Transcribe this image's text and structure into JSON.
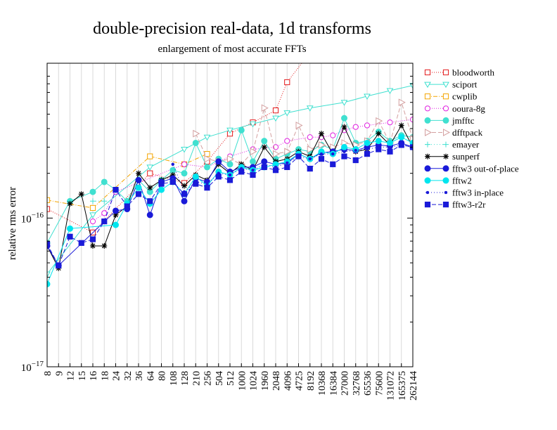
{
  "chart_data": {
    "type": "line",
    "title": "double-precision real-data, 1d transforms",
    "subtitle": "enlargement of most accurate FFTs",
    "ylabel": "relative rms error",
    "xlabel": "",
    "y_scale": "log",
    "ylim": [
      1e-17,
      1.1e-15
    ],
    "y_ticks": [
      {
        "value": 1e-17,
        "base": "10",
        "exp": "−17"
      },
      {
        "value": 1e-16,
        "base": "10",
        "exp": "−16"
      }
    ],
    "grid": "vertical lines at each size",
    "legend_position": "right, outside plot",
    "categories": [
      "8",
      "9",
      "12",
      "15",
      "16",
      "18",
      "24",
      "32",
      "36",
      "64",
      "80",
      "108",
      "128",
      "210",
      "256",
      "504",
      "512",
      "1000",
      "1024",
      "1960",
      "2048",
      "4096",
      "4725",
      "8192",
      "10368",
      "16384",
      "27000",
      "32768",
      "65536",
      "75600",
      "131072",
      "165375",
      "262144"
    ],
    "series": [
      {
        "name": "bloodworth",
        "color": "#e41a1c",
        "marker": "square-open",
        "dash": "1,2",
        "values": [
          1.15e-16,
          null,
          null,
          null,
          8e-17,
          null,
          null,
          null,
          null,
          2e-16,
          null,
          null,
          1.72e-16,
          null,
          2.4e-16,
          null,
          3.7e-16,
          null,
          4.4e-16,
          null,
          5.3e-16,
          8.2e-16,
          null,
          1.3e-15,
          null,
          null,
          null,
          null,
          null,
          null,
          null,
          null,
          null
        ]
      },
      {
        "name": "sciport",
        "color": "#40e0d0",
        "marker": "triangle-down-open",
        "dash": "",
        "values": [
          4.2e-17,
          null,
          null,
          null,
          1.05e-16,
          null,
          null,
          null,
          null,
          2.2e-16,
          null,
          null,
          2.9e-16,
          null,
          3.5e-16,
          null,
          3.9e-16,
          null,
          4.3e-16,
          null,
          4.7e-16,
          5.1e-16,
          null,
          5.5e-16,
          null,
          null,
          6e-16,
          null,
          6.6e-16,
          null,
          7.2e-16,
          null,
          7.8e-16
        ]
      },
      {
        "name": "cwplib",
        "color": "#f4a500",
        "marker": "square-open",
        "dash": "6,2,1,2",
        "values": [
          1.32e-16,
          null,
          null,
          null,
          1.17e-16,
          null,
          null,
          null,
          null,
          2.6e-16,
          null,
          null,
          2.3e-16,
          null,
          2.7e-16,
          null,
          null,
          null,
          null,
          null,
          null,
          null,
          null,
          null,
          null,
          null,
          null,
          null,
          null,
          null,
          null,
          null,
          null
        ]
      },
      {
        "name": "ooura-8g",
        "color": "#e020e0",
        "marker": "circle-open",
        "dash": "1,2",
        "values": [
          null,
          null,
          null,
          null,
          9.5e-17,
          1.08e-16,
          1.5e-16,
          null,
          null,
          null,
          null,
          null,
          2.3e-16,
          null,
          2.2e-16,
          null,
          2.6e-16,
          null,
          2.9e-16,
          null,
          3e-16,
          3.3e-16,
          null,
          3.5e-16,
          3.5e-16,
          3.6e-16,
          3.9e-16,
          4.1e-16,
          4.2e-16,
          null,
          4.4e-16,
          null,
          4.6e-16
        ]
      },
      {
        "name": "jmfftc",
        "color": "#40e0d0",
        "marker": "circle-filled",
        "dash": "",
        "values": [
          6.8e-17,
          null,
          1.3e-16,
          null,
          1.5e-16,
          1.75e-16,
          1.55e-16,
          1.3e-16,
          1.8e-16,
          1.5e-16,
          1.8e-16,
          2.1e-16,
          2e-16,
          3.2e-16,
          2.2e-16,
          2.5e-16,
          2.3e-16,
          3.9e-16,
          2.4e-16,
          3.3e-16,
          2.5e-16,
          2.7e-16,
          2.9e-16,
          2.8e-16,
          3.1e-16,
          2.9e-16,
          4.7e-16,
          3.2e-16,
          3.3e-16,
          3.8e-16,
          3.3e-16,
          3.6e-16,
          3.5e-16
        ]
      },
      {
        "name": "dfftpack",
        "color": "#d4a0a0",
        "marker": "triangle-right-open",
        "dash": "6,3",
        "values": [
          null,
          null,
          null,
          null,
          null,
          null,
          null,
          null,
          null,
          null,
          null,
          null,
          null,
          3.7e-16,
          2.5e-16,
          2.4e-16,
          2.5e-16,
          2.3e-16,
          2.8e-16,
          5.5e-16,
          2.7e-16,
          2.8e-16,
          4.2e-16,
          2.9e-16,
          3.1e-16,
          3e-16,
          3.2e-16,
          3.1e-16,
          3.3e-16,
          4.5e-16,
          3.2e-16,
          6e-16,
          3.4e-16
        ]
      },
      {
        "name": "emayer",
        "color": "#40e0d0",
        "marker": "plus",
        "dash": "1,3",
        "values": [
          null,
          null,
          null,
          null,
          1.3e-16,
          1.3e-16,
          null,
          null,
          null,
          null,
          null,
          null,
          null,
          null,
          null,
          null,
          null,
          null,
          null,
          null,
          null,
          null,
          null,
          null,
          null,
          null,
          null,
          null,
          null,
          null,
          null,
          null,
          null
        ]
      },
      {
        "name": "sunperf",
        "color": "#000000",
        "marker": "star",
        "dash": "",
        "values": [
          6.5e-17,
          4.6e-17,
          1.25e-16,
          1.45e-16,
          6.5e-17,
          6.5e-17,
          1.05e-16,
          1.2e-16,
          2e-16,
          1.6e-16,
          1.8e-16,
          1.95e-16,
          1.65e-16,
          1.95e-16,
          1.8e-16,
          2.3e-16,
          2e-16,
          2.3e-16,
          2.1e-16,
          3e-16,
          2.4e-16,
          2.5e-16,
          2.8e-16,
          2.6e-16,
          3.7e-16,
          2.7e-16,
          4.1e-16,
          2.8e-16,
          2.9e-16,
          3.7e-16,
          3.1e-16,
          4.2e-16,
          3e-16
        ]
      },
      {
        "name": "fftw3 out-of-place",
        "color": "#1a1ad8",
        "marker": "circle-filled",
        "dash": "",
        "values": [
          6.5e-17,
          4.8e-17,
          null,
          null,
          null,
          null,
          1.12e-16,
          1.15e-16,
          1.8e-16,
          1.05e-16,
          1.75e-16,
          1.85e-16,
          1.3e-16,
          1.85e-16,
          1.75e-16,
          2.4e-16,
          2.05e-16,
          2.2e-16,
          2.2e-16,
          2.4e-16,
          2.3e-16,
          2.35e-16,
          2.7e-16,
          2.5e-16,
          2.75e-16,
          2.8e-16,
          2.9e-16,
          2.85e-16,
          3e-16,
          3.1e-16,
          3.05e-16,
          3.2e-16,
          3e-16
        ]
      },
      {
        "name": "fftw2",
        "color": "#00e5ee",
        "marker": "circle-filled",
        "dash": "",
        "values": [
          3.6e-17,
          null,
          8.5e-17,
          null,
          null,
          null,
          9e-17,
          1.25e-16,
          1.6e-16,
          1.25e-16,
          1.55e-16,
          1.75e-16,
          1.45e-16,
          1.9e-16,
          1.65e-16,
          2.05e-16,
          1.95e-16,
          2.2e-16,
          2.1e-16,
          2.2e-16,
          2.3e-16,
          2.4e-16,
          2.7e-16,
          2.5e-16,
          2.8e-16,
          2.7e-16,
          3e-16,
          2.9e-16,
          3.2e-16,
          3.3e-16,
          3.2e-16,
          3.5e-16,
          3.2e-16
        ]
      },
      {
        "name": "fftw3 in-place",
        "color": "#1a1ad8",
        "marker": "dot",
        "dash": "1,3",
        "values": [
          null,
          null,
          null,
          null,
          null,
          null,
          null,
          null,
          null,
          null,
          null,
          2.3e-16,
          1.5e-16,
          1.75e-16,
          1.7e-16,
          2e-16,
          1.95e-16,
          2.15e-16,
          2.1e-16,
          2.3e-16,
          2.2e-16,
          2.35e-16,
          2.6e-16,
          2.5e-16,
          2.7e-16,
          2.7e-16,
          2.8e-16,
          2.85e-16,
          2.9e-16,
          3e-16,
          3e-16,
          3.1e-16,
          3.05e-16
        ]
      },
      {
        "name": "fftw3-r2r",
        "color": "#1a1ad8",
        "marker": "square-filled",
        "dash": "6,3",
        "values": [
          6.7e-17,
          4.8e-17,
          7.5e-17,
          6.8e-17,
          7.2e-17,
          9.5e-17,
          1.55e-16,
          1.2e-16,
          1.45e-16,
          1.3e-16,
          1.7e-16,
          1.75e-16,
          1.45e-16,
          1.7e-16,
          1.6e-16,
          1.9e-16,
          1.8e-16,
          2.05e-16,
          1.95e-16,
          2.2e-16,
          2.1e-16,
          2.2e-16,
          2.6e-16,
          2.15e-16,
          2.5e-16,
          2.3e-16,
          2.6e-16,
          2.45e-16,
          2.7e-16,
          2.9e-16,
          2.8e-16,
          3.1e-16,
          3e-16
        ]
      }
    ]
  }
}
